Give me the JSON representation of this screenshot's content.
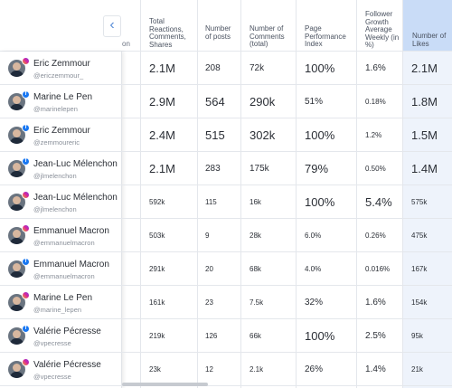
{
  "sidebar": {
    "collapse_icon": "chevron-left-icon",
    "collapse_glyph": "‹"
  },
  "hidden_column_fragment": "on",
  "columns": [
    "Total Reactions, Comments, Shares",
    "Number of posts",
    "Number of Comments (total)",
    "Page Performance Index",
    "Follower Growth Average Weekly (in %)",
    "Number of Likes"
  ],
  "colors": {
    "likes_header_bg": "#c9dcf7",
    "likes_column_bg": "#eef3fb",
    "link_blue": "#5a8ed8"
  },
  "rows": [
    {
      "name": "Eric Zemmour",
      "handle": "@ericzemmour_",
      "network": "instagram",
      "reactions": "2.1M",
      "posts": "208",
      "comments": "72k",
      "ppi": "100%",
      "growth": "1.6%",
      "likes": "2.1M",
      "size": {
        "reactions": "l",
        "posts": "m",
        "comments": "m",
        "ppi": "l",
        "growth": "m",
        "likes": "l"
      }
    },
    {
      "name": "Marine Le Pen",
      "handle": "@marinelepen",
      "network": "facebook",
      "reactions": "2.9M",
      "posts": "564",
      "comments": "290k",
      "ppi": "51%",
      "growth": "0.18%",
      "likes": "1.8M",
      "size": {
        "reactions": "l",
        "posts": "l",
        "comments": "l",
        "ppi": "m",
        "growth": "s",
        "likes": "l"
      }
    },
    {
      "name": "Eric Zemmour",
      "handle": "@zemmoureric",
      "network": "facebook",
      "reactions": "2.4M",
      "posts": "515",
      "comments": "302k",
      "ppi": "100%",
      "growth": "1.2%",
      "likes": "1.5M",
      "size": {
        "reactions": "l",
        "posts": "l",
        "comments": "l",
        "ppi": "l",
        "growth": "s",
        "likes": "l"
      }
    },
    {
      "name": "Jean-Luc Mélenchon",
      "handle": "@jlmelenchon",
      "network": "facebook",
      "reactions": "2.1M",
      "posts": "283",
      "comments": "175k",
      "ppi": "79%",
      "growth": "0.50%",
      "likes": "1.4M",
      "size": {
        "reactions": "l",
        "posts": "m",
        "comments": "m",
        "ppi": "l",
        "growth": "s",
        "likes": "l"
      }
    },
    {
      "name": "Jean-Luc Mélenchon",
      "handle": "@jlmelenchon",
      "network": "instagram",
      "reactions": "592k",
      "posts": "115",
      "comments": "16k",
      "ppi": "100%",
      "growth": "5.4%",
      "likes": "575k",
      "size": {
        "reactions": "s",
        "posts": "s",
        "comments": "s",
        "ppi": "l",
        "growth": "l",
        "likes": "s"
      }
    },
    {
      "name": "Emmanuel Macron",
      "handle": "@emmanuelmacron",
      "network": "instagram",
      "reactions": "503k",
      "posts": "9",
      "comments": "28k",
      "ppi": "6.0%",
      "growth": "0.26%",
      "likes": "475k",
      "size": {
        "reactions": "s",
        "posts": "s",
        "comments": "s",
        "ppi": "s",
        "growth": "s",
        "likes": "s"
      }
    },
    {
      "name": "Emmanuel Macron",
      "handle": "@emmanuelmacron",
      "network": "facebook",
      "reactions": "291k",
      "posts": "20",
      "comments": "68k",
      "ppi": "4.0%",
      "growth": "0.016%",
      "likes": "167k",
      "size": {
        "reactions": "s",
        "posts": "s",
        "comments": "s",
        "ppi": "s",
        "growth": "s",
        "likes": "s"
      }
    },
    {
      "name": "Marine Le Pen",
      "handle": "@marine_lepen",
      "network": "instagram",
      "reactions": "161k",
      "posts": "23",
      "comments": "7.5k",
      "ppi": "32%",
      "growth": "1.6%",
      "likes": "154k",
      "size": {
        "reactions": "s",
        "posts": "s",
        "comments": "s",
        "ppi": "m",
        "growth": "m",
        "likes": "s"
      }
    },
    {
      "name": "Valérie Pécresse",
      "handle": "@vpecresse",
      "network": "facebook",
      "reactions": "219k",
      "posts": "126",
      "comments": "66k",
      "ppi": "100%",
      "growth": "2.5%",
      "likes": "95k",
      "size": {
        "reactions": "s",
        "posts": "s",
        "comments": "s",
        "ppi": "l",
        "growth": "m",
        "likes": "s"
      }
    },
    {
      "name": "Valérie Pécresse",
      "handle": "@vpecresse",
      "network": "instagram",
      "reactions": "23k",
      "posts": "12",
      "comments": "2.1k",
      "ppi": "26%",
      "growth": "1.4%",
      "likes": "21k",
      "size": {
        "reactions": "s",
        "posts": "s",
        "comments": "s",
        "ppi": "m",
        "growth": "m",
        "likes": "s"
      }
    }
  ]
}
